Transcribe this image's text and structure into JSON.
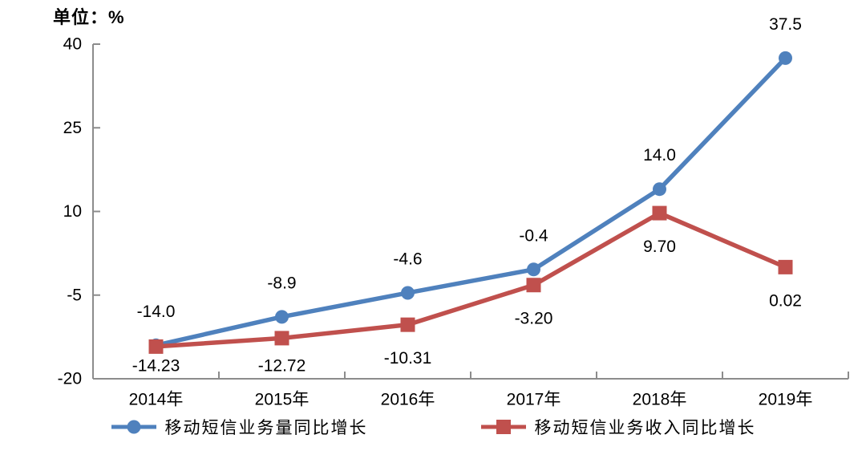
{
  "chart": {
    "unit_label": "单位：%"
  },
  "chart_data": {
    "type": "line",
    "title": "",
    "unit_label": "单位：%",
    "categories": [
      "2014年",
      "2015年",
      "2016年",
      "2017年",
      "2018年",
      "2019年"
    ],
    "series": [
      {
        "name": "移动短信业务量同比增长",
        "color": "#4F81BD",
        "marker": "circle",
        "label_side": "above",
        "values": [
          -14.0,
          -8.9,
          -4.6,
          -0.4,
          14.0,
          37.5
        ],
        "labels": [
          "-14.0",
          "-8.9",
          "-4.6",
          "-0.4",
          "14.0",
          "37.5"
        ]
      },
      {
        "name": "移动短信业务收入同比增长",
        "color": "#C0504D",
        "marker": "square",
        "label_side": "below",
        "values": [
          -14.23,
          -12.72,
          -10.31,
          -3.2,
          9.7,
          0.02
        ],
        "labels": [
          "-14.23",
          "-12.72",
          "-10.31",
          "-3.20",
          "9.70",
          "0.02"
        ]
      }
    ],
    "ylim": [
      -20,
      40
    ],
    "y_ticks": [
      40,
      25,
      10,
      -5,
      -20
    ],
    "y_tick_labels": [
      "40",
      "25",
      "10",
      "-5",
      "-20"
    ],
    "grid": false,
    "legend_position": "bottom",
    "axis_color": "#8C8C8C",
    "text_color": "#000000",
    "background_color": "#FFFFFF"
  }
}
